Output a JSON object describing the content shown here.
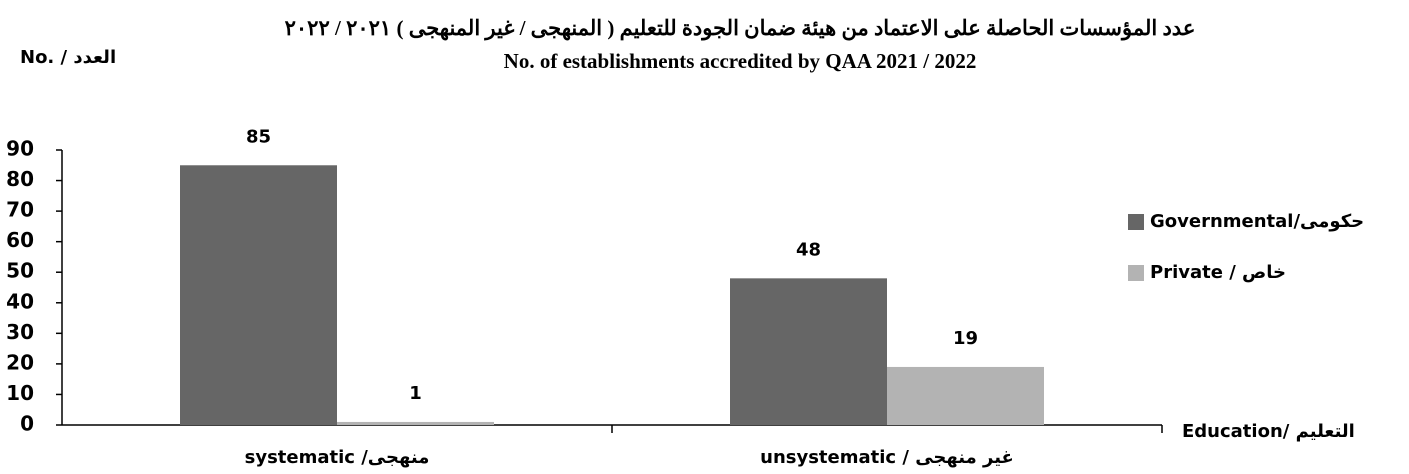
{
  "chart_data": {
    "type": "bar",
    "title": "عدد المؤسسات الحاصلة على الاعتماد من هيئة ضمان الجودة للتعليم ( المنهجى / غير المنهجى ) ٢٠٢١ / ٢٠٢٢",
    "subtitle": "No. of establishments accredited by QAA 2021 / 2022",
    "y_label": "No.  / العدد",
    "x_label": "Education/ التعليم",
    "categories": [
      "systematic /منهجى",
      "unsystematic / غير منهجى"
    ],
    "series": [
      {
        "name": "Governmental/حكومى",
        "color": "#666666",
        "values": [
          85,
          48
        ]
      },
      {
        "name": "Private / خاص",
        "color": "#b3b3b3",
        "values": [
          1,
          19
        ]
      }
    ],
    "ylim": [
      0,
      90
    ],
    "yticks": [
      0,
      10,
      20,
      30,
      40,
      50,
      60,
      70,
      80,
      90
    ],
    "legend": "right",
    "grid": false
  }
}
